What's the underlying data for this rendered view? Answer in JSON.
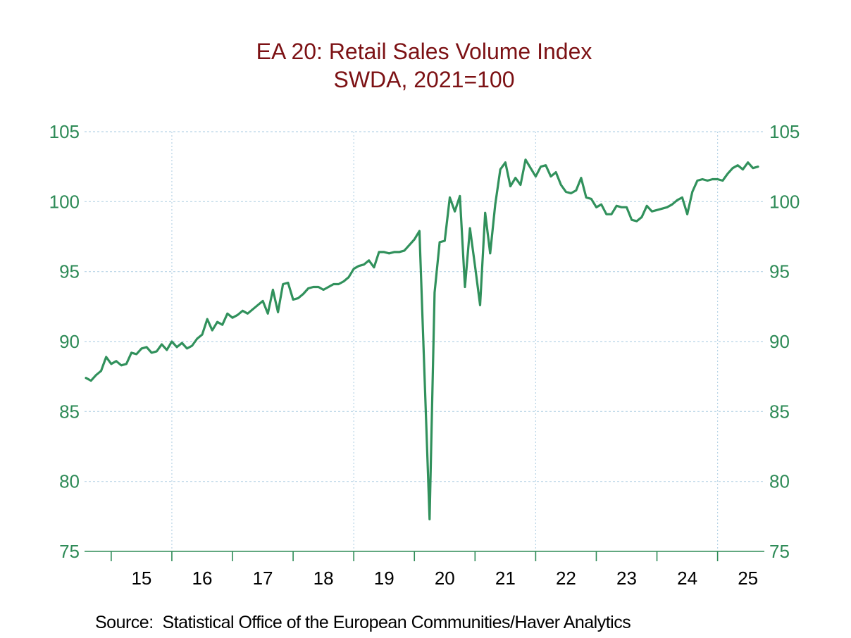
{
  "title": {
    "line1": "EA 20: Retail Sales Volume Index",
    "line2": "SWDA, 2021=100"
  },
  "source": "Source:  Statistical Office of the European Communities/Haver Analytics",
  "colors": {
    "title": "#7c1114",
    "series": "#31915c",
    "axis": "#2e8b57",
    "grid": "#b8d4e6",
    "x_label": "#000000",
    "background": "#ffffff"
  },
  "chart_data": {
    "type": "line",
    "title": "EA 20: Retail Sales Volume Index",
    "subtitle": "SWDA, 2021=100",
    "xlabel": "",
    "ylabel": "",
    "ylim": [
      75,
      105
    ],
    "y_ticks": [
      75,
      80,
      85,
      90,
      95,
      100,
      105
    ],
    "y_labels_both_sides": true,
    "grid": true,
    "x_tick_years": [
      2015,
      2016,
      2017,
      2018,
      2019,
      2020,
      2021,
      2022,
      2023,
      2024,
      2025
    ],
    "x_tick_labels": [
      "15",
      "16",
      "17",
      "18",
      "19",
      "20",
      "21",
      "22",
      "23",
      "24",
      "25"
    ],
    "x_gridline_years": [
      2016,
      2019,
      2022,
      2025
    ],
    "start": "2014-08",
    "frequency": "monthly",
    "series": [
      {
        "name": "EA 20 Retail Sales Volume Index, SWDA, 2021=100",
        "values": [
          87.4,
          87.2,
          87.6,
          87.9,
          88.9,
          88.4,
          88.6,
          88.3,
          88.4,
          89.2,
          89.1,
          89.5,
          89.6,
          89.2,
          89.3,
          89.8,
          89.4,
          90.0,
          89.6,
          89.9,
          89.5,
          89.7,
          90.2,
          90.5,
          91.6,
          90.8,
          91.4,
          91.2,
          92.0,
          91.7,
          91.9,
          92.2,
          92.0,
          92.3,
          92.6,
          92.9,
          92.0,
          93.7,
          92.1,
          94.1,
          94.2,
          93.0,
          93.1,
          93.4,
          93.8,
          93.9,
          93.9,
          93.7,
          93.9,
          94.1,
          94.1,
          94.3,
          94.6,
          95.2,
          95.4,
          95.5,
          95.8,
          95.3,
          96.4,
          96.4,
          96.3,
          96.4,
          96.4,
          96.5,
          96.9,
          97.3,
          97.9,
          87.6,
          77.3,
          93.5,
          97.1,
          97.2,
          100.3,
          99.3,
          100.4,
          93.9,
          98.1,
          95.4,
          92.6,
          99.2,
          96.3,
          99.8,
          102.3,
          102.8,
          101.1,
          101.7,
          101.2,
          103.0,
          102.4,
          101.8,
          102.5,
          102.6,
          101.8,
          102.1,
          101.2,
          100.7,
          100.6,
          100.8,
          101.7,
          100.3,
          100.2,
          99.6,
          99.8,
          99.1,
          99.1,
          99.7,
          99.6,
          99.6,
          98.7,
          98.6,
          98.9,
          99.7,
          99.3,
          99.4,
          99.5,
          99.6,
          99.8,
          100.1,
          100.3,
          99.1,
          100.7,
          101.5,
          101.6,
          101.5,
          101.6,
          101.6,
          101.5,
          102.0,
          102.4,
          102.6,
          102.3,
          102.8,
          102.4,
          102.5
        ]
      }
    ]
  }
}
